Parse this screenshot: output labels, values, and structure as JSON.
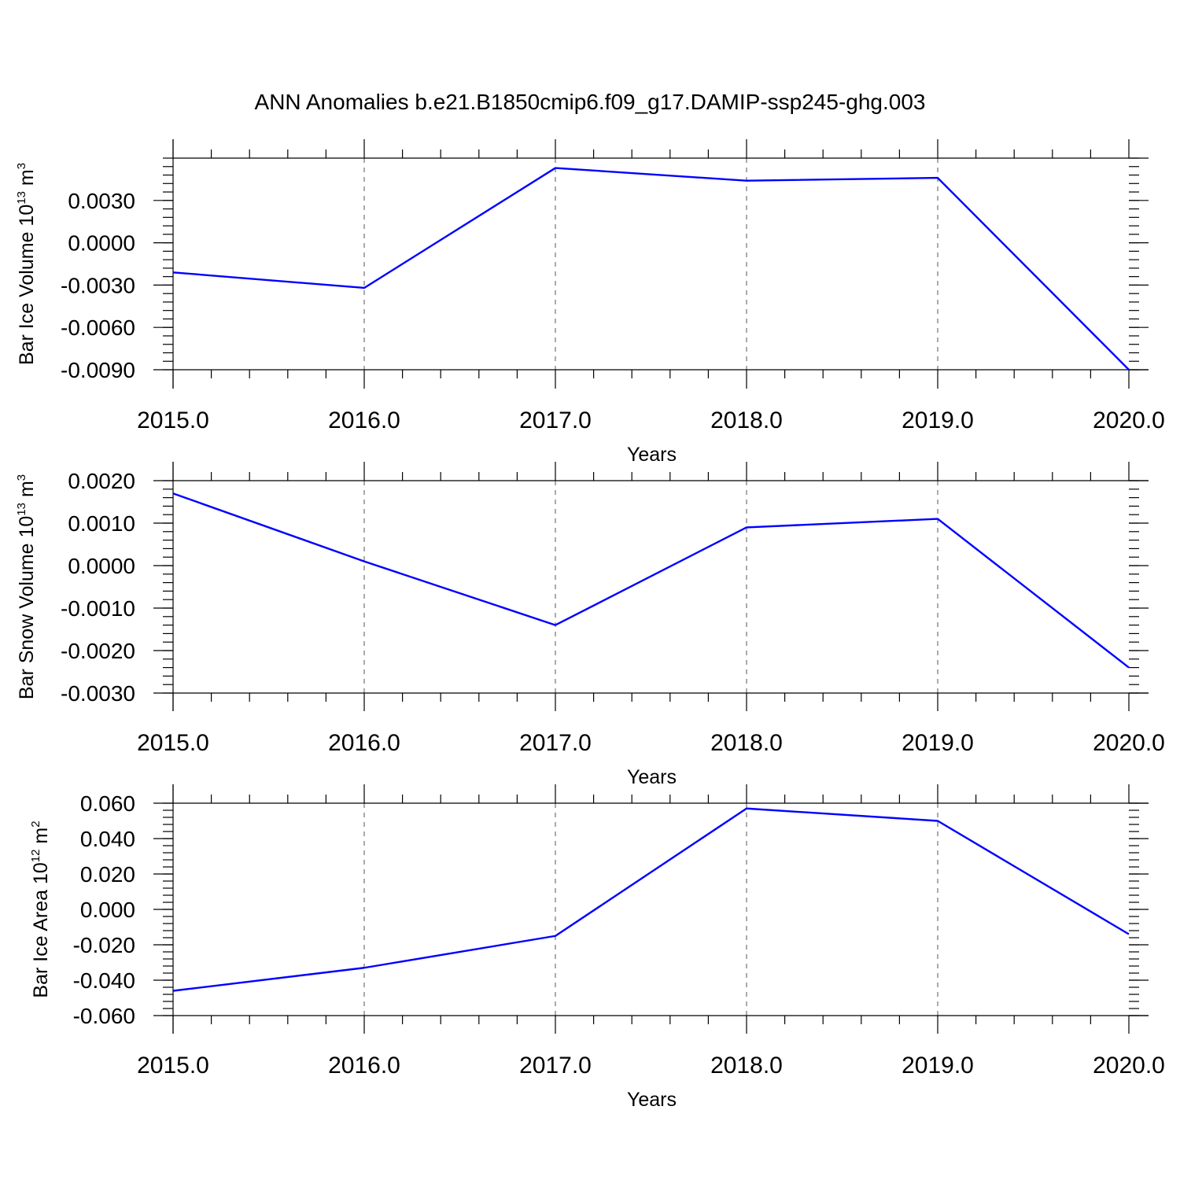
{
  "figure": {
    "title": "ANN Anomalies b.e21.B1850cmip6.f09_g17.DAMIP-ssp245-ghg.003",
    "line_color": "#0000ff"
  },
  "chart_data": [
    {
      "type": "line",
      "ylabel": "Bar Ice Volume 10",
      "ylabel_exp": "13",
      "ylabel_unit": " m",
      "ylabel_unit_exp": "3",
      "xlabel": "Years",
      "x": [
        2015,
        2016,
        2017,
        2018,
        2019,
        2020
      ],
      "x_tick_labels": [
        "2015.0",
        "2016.0",
        "2017.0",
        "2018.0",
        "2019.0",
        "2020.0"
      ],
      "xlim": [
        2015,
        2020
      ],
      "ylim": [
        -0.009,
        0.006
      ],
      "y_ticks": [
        0.003,
        0.0,
        -0.003,
        -0.006,
        -0.009
      ],
      "y_tick_labels": [
        "0.0030",
        "0.0000",
        "-0.0030",
        "-0.0060",
        "-0.0090"
      ],
      "series": [
        {
          "values": [
            -0.0021,
            -0.0032,
            0.0053,
            0.0044,
            0.0046,
            -0.009
          ]
        }
      ],
      "grid": "vertical-dashed"
    },
    {
      "type": "line",
      "ylabel": "Bar Snow Volume 10",
      "ylabel_exp": "13",
      "ylabel_unit": " m",
      "ylabel_unit_exp": "3",
      "xlabel": "Years",
      "x": [
        2015,
        2016,
        2017,
        2018,
        2019,
        2020
      ],
      "x_tick_labels": [
        "2015.0",
        "2016.0",
        "2017.0",
        "2018.0",
        "2019.0",
        "2020.0"
      ],
      "xlim": [
        2015,
        2020
      ],
      "ylim": [
        -0.003,
        0.002
      ],
      "y_ticks": [
        0.002,
        0.001,
        0.0,
        -0.001,
        -0.002,
        -0.003
      ],
      "y_tick_labels": [
        "0.0020",
        "0.0010",
        "0.0000",
        "-0.0010",
        "-0.0020",
        "-0.0030"
      ],
      "series": [
        {
          "values": [
            0.0017,
            0.0001,
            -0.0014,
            0.0009,
            0.0011,
            -0.0024
          ]
        }
      ],
      "grid": "vertical-dashed"
    },
    {
      "type": "line",
      "ylabel": "Bar Ice Area 10",
      "ylabel_exp": "12",
      "ylabel_unit": " m",
      "ylabel_unit_exp": "2",
      "xlabel": "Years",
      "x": [
        2015,
        2016,
        2017,
        2018,
        2019,
        2020
      ],
      "x_tick_labels": [
        "2015.0",
        "2016.0",
        "2017.0",
        "2018.0",
        "2019.0",
        "2020.0"
      ],
      "xlim": [
        2015,
        2020
      ],
      "ylim": [
        -0.06,
        0.06
      ],
      "y_ticks": [
        0.06,
        0.04,
        0.02,
        0.0,
        -0.02,
        -0.04,
        -0.06
      ],
      "y_tick_labels": [
        "0.060",
        "0.040",
        "0.020",
        "0.000",
        "-0.020",
        "-0.040",
        "-0.060"
      ],
      "series": [
        {
          "values": [
            -0.046,
            -0.033,
            -0.015,
            0.057,
            0.05,
            -0.014
          ]
        }
      ],
      "grid": "vertical-dashed"
    }
  ]
}
